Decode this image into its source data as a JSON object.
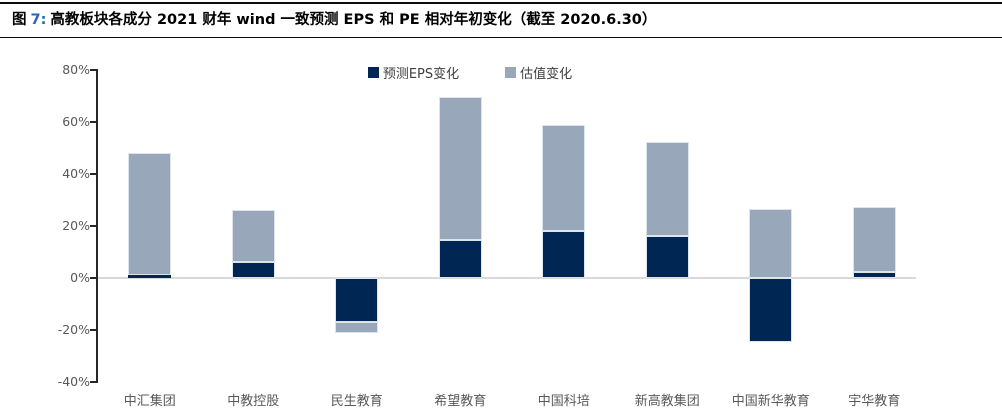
{
  "header": {
    "figure_word": "图",
    "figure_number": "7:",
    "title": "高教板块各成分 2021 财年 wind 一致预测 EPS 和 PE 相对年初变化（截至 2020.6.30）"
  },
  "colors": {
    "eps_series": "#002653",
    "valuation_series": "#98A7B9",
    "figure_number_accent": "#2A66B8",
    "axis_line": "#262626",
    "tick_label": "#595959",
    "zero_gridline": "#D9D9D9",
    "legend_text": "#404040",
    "bar_edge": "#DDE4EC"
  },
  "chart_data": {
    "type": "bar",
    "stacked": true,
    "title": "高教板块各成分 2021 财年 wind 一致预测 EPS 和 PE 相对年初变化（截至 2020.6.30）",
    "categories": [
      "中汇集团",
      "中教控股",
      "民生教育",
      "希望教育",
      "中国科培",
      "新高教集团",
      "中国新华教育",
      "宇华教育"
    ],
    "series": [
      {
        "name": "预测EPS变化",
        "color": "#002653",
        "values": [
          1,
          6,
          -17,
          14.5,
          18,
          16,
          -24.5,
          2.5
        ]
      },
      {
        "name": "估值变化",
        "color": "#98A7B9",
        "values": [
          47,
          20,
          -4,
          55,
          41,
          36.5,
          26.5,
          25
        ]
      }
    ],
    "xlabel": "",
    "ylabel": "",
    "ylim": [
      -40,
      80
    ],
    "ytick_step": 20,
    "ytick_labels": [
      "80%",
      "60%",
      "40%",
      "20%",
      "0%",
      "-20%",
      "-40%"
    ],
    "grid": "zero-line-only",
    "legend_position": "top-center"
  }
}
